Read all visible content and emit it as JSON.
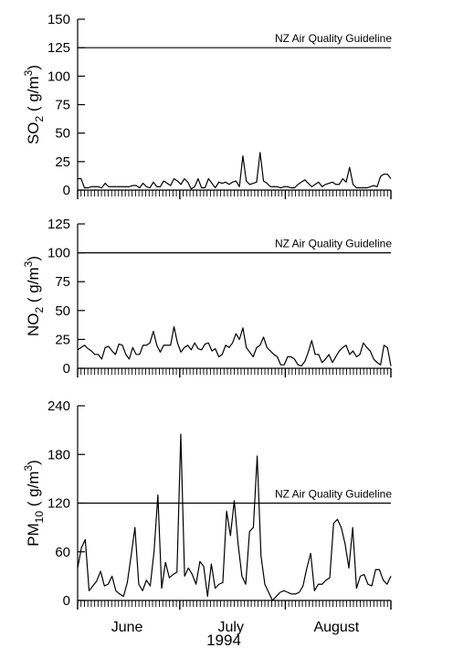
{
  "figure": {
    "year_label": "1994",
    "month_labels": [
      "June",
      "July",
      "August"
    ]
  },
  "chart_data": [
    {
      "type": "line",
      "panel": "so2",
      "ylabel": {
        "pre": "SO",
        "sub": "2",
        "mid": " (  g/m",
        "sup": "3",
        "post": ")"
      },
      "ylim": [
        0,
        150
      ],
      "yticks": [
        0,
        25,
        50,
        75,
        100,
        125,
        150
      ],
      "guideline": {
        "value": 125,
        "label": "NZ Air Quality Guideline"
      },
      "x_day_range": [
        1,
        93
      ],
      "series": [
        {
          "values": [
            10,
            10,
            2,
            2,
            3,
            3,
            3,
            2,
            6,
            3,
            3,
            3,
            3,
            3,
            3,
            3,
            4,
            4,
            2,
            6,
            3,
            2,
            7,
            3,
            3,
            8,
            6,
            4,
            10,
            8,
            5,
            10,
            7,
            1,
            3,
            10,
            2,
            2,
            10,
            6,
            2,
            7,
            6,
            7,
            5,
            7,
            8,
            3,
            30,
            8,
            5,
            6,
            7,
            33,
            8,
            6,
            3,
            3,
            3,
            2,
            3,
            3,
            2,
            2,
            5,
            7,
            9,
            6,
            3,
            5,
            7,
            3,
            5,
            6,
            7,
            5,
            5,
            10,
            7,
            20,
            5,
            2,
            2,
            2,
            2,
            3,
            4,
            3,
            12,
            14,
            14,
            10
          ]
        }
      ]
    },
    {
      "type": "line",
      "panel": "no2",
      "ylabel": {
        "pre": "NO",
        "sub": "2",
        "mid": " (  g/m",
        "sup": "3",
        "post": ")"
      },
      "ylim": [
        0,
        125
      ],
      "yticks": [
        0,
        25,
        50,
        75,
        100,
        125
      ],
      "guideline": {
        "value": 100,
        "label": "NZ Air Quality Guideline"
      },
      "x_day_range": [
        1,
        93
      ],
      "series": [
        {
          "values": [
            16,
            18,
            20,
            17,
            15,
            12,
            12,
            8,
            18,
            19,
            15,
            12,
            21,
            20,
            12,
            8,
            18,
            12,
            12,
            20,
            20,
            22,
            32,
            20,
            14,
            20,
            20,
            20,
            36,
            22,
            14,
            18,
            20,
            16,
            22,
            17,
            16,
            21,
            22,
            15,
            17,
            10,
            12,
            20,
            18,
            22,
            30,
            25,
            35,
            18,
            14,
            10,
            18,
            20,
            27,
            18,
            15,
            12,
            10,
            3,
            3,
            10,
            10,
            8,
            3,
            2,
            6,
            14,
            24,
            12,
            12,
            5,
            8,
            12,
            5,
            10,
            15,
            18,
            20,
            12,
            15,
            10,
            12,
            22,
            18,
            15,
            8,
            5,
            3,
            20,
            18,
            2
          ]
        }
      ]
    },
    {
      "type": "line",
      "panel": "pm10",
      "ylabel": {
        "pre": "PM",
        "sub": "10",
        "mid": " (  g/m",
        "sup": "3",
        "post": ")"
      },
      "ylim": [
        0,
        240
      ],
      "yticks": [
        0,
        60,
        120,
        180,
        240
      ],
      "guideline": {
        "value": 120,
        "label": "NZ Air Quality Guideline"
      },
      "x_day_range": [
        1,
        93
      ],
      "series": [
        {
          "values": [
            40,
            65,
            75,
            12,
            18,
            24,
            36,
            18,
            20,
            30,
            12,
            8,
            5,
            22,
            55,
            90,
            20,
            12,
            25,
            18,
            60,
            130,
            15,
            47,
            28,
            32,
            35,
            205,
            30,
            40,
            32,
            20,
            48,
            42,
            5,
            45,
            15,
            20,
            22,
            110,
            80,
            123,
            70,
            30,
            20,
            85,
            90,
            178,
            55,
            20,
            10,
            0,
            5,
            10,
            12,
            10,
            8,
            8,
            10,
            18,
            40,
            58,
            12,
            20,
            20,
            25,
            28,
            95,
            100,
            90,
            70,
            40,
            90,
            15,
            30,
            32,
            20,
            18,
            38,
            38,
            25,
            20,
            30
          ]
        }
      ]
    }
  ]
}
